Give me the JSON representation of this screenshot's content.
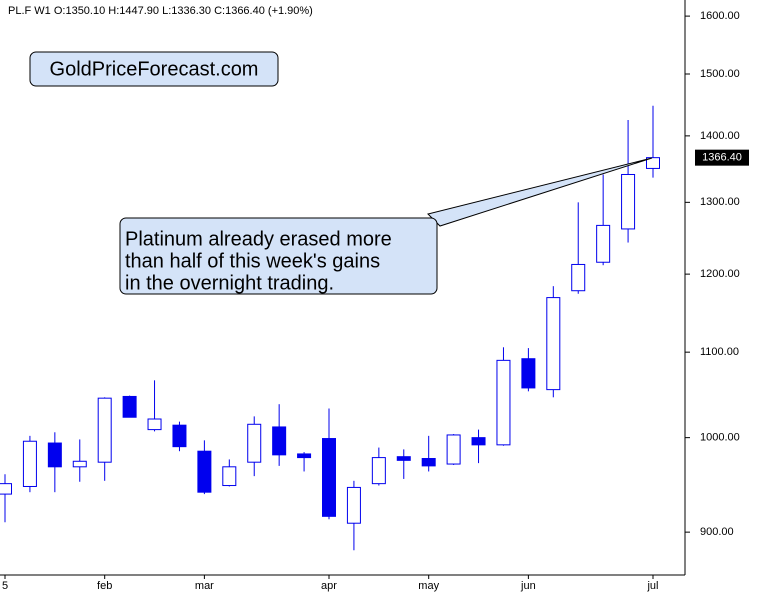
{
  "chart_data": {
    "type": "candlestick",
    "title": "PL.F  W1  O:1350.10  H:1447.90  L:1336.30  C:1366.40  (+1.90%)",
    "watermark": "GoldPriceForecast.com",
    "annotation": [
      "Platinum already erased more",
      "than half of this week's gains",
      "in the overnight trading."
    ],
    "categories": [
      "5",
      null,
      null,
      null,
      "feb",
      null,
      null,
      null,
      "mar",
      null,
      null,
      null,
      null,
      "apr",
      null,
      null,
      null,
      "may",
      null,
      null,
      null,
      "jun",
      null,
      null,
      null,
      null,
      "jul"
    ],
    "open": [
      939,
      947,
      994,
      968,
      973,
      1047,
      1009,
      1014,
      985,
      948,
      973,
      1012,
      982,
      999,
      909,
      950,
      979,
      977,
      971,
      1000,
      992,
      1092,
      1055,
      1178,
      1216,
      1262,
      1350.1
    ],
    "high": [
      960,
      1002,
      1006,
      998,
      1046,
      1048,
      1066,
      1018,
      997,
      976,
      1024,
      1038,
      984,
      1033,
      953,
      989,
      987,
      1002,
      1004,
      1009,
      1106,
      1105,
      1184,
      1300,
      1341,
      1425,
      1447.9
    ],
    "low": [
      910,
      941,
      941,
      952,
      953,
      1023,
      1007,
      985,
      939,
      947,
      958,
      969,
      963,
      913,
      882,
      948,
      955,
      963,
      970,
      972,
      991,
      1053,
      1046,
      1174,
      1212,
      1243,
      1336.3
    ],
    "close": [
      950,
      996,
      968,
      974,
      1045,
      1023,
      1021,
      990,
      941,
      968,
      1015,
      981,
      978,
      916,
      946,
      978,
      975,
      969,
      1003,
      992,
      1090,
      1057,
      1169,
      1213,
      1267,
      1341,
      1366.4
    ],
    "color": "#0000ee",
    "last_price": {
      "value": 1366.4,
      "label": "1366.40"
    },
    "log_scale": true,
    "ylim": [
      858,
      1629
    ],
    "yticks": [
      {
        "value": 900,
        "label": "900.00"
      },
      {
        "value": 1000,
        "label": "1000.00"
      },
      {
        "value": 1100,
        "label": "1100.00"
      },
      {
        "value": 1200,
        "label": "1200.00"
      },
      {
        "value": 1300,
        "label": "1300.00"
      },
      {
        "value": 1400,
        "label": "1400.00"
      },
      {
        "value": 1500,
        "label": "1500.00"
      },
      {
        "value": 1600,
        "label": "1600.00"
      }
    ]
  }
}
